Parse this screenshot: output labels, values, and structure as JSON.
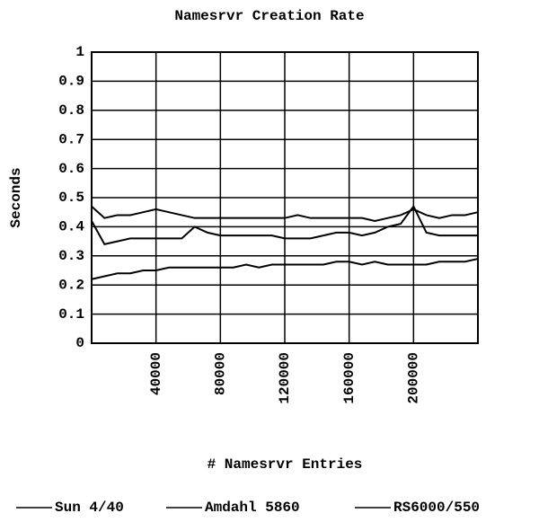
{
  "chart_data": {
    "type": "line",
    "title": "Namesrvr Creation Rate",
    "xlabel": "# Namesrvr Entries",
    "ylabel": "Seconds",
    "x": [
      0,
      8000,
      16000,
      24000,
      32000,
      40000,
      48000,
      56000,
      64000,
      72000,
      80000,
      88000,
      96000,
      104000,
      112000,
      120000,
      128000,
      136000,
      144000,
      152000,
      160000,
      168000,
      176000,
      184000,
      192000,
      200000,
      208000,
      216000,
      224000,
      232000,
      240000
    ],
    "series": [
      {
        "name": "Sun 4/40",
        "color": "#000000",
        "values": [
          0.47,
          0.43,
          0.44,
          0.44,
          0.45,
          0.46,
          0.45,
          0.44,
          0.43,
          0.43,
          0.43,
          0.43,
          0.43,
          0.43,
          0.43,
          0.43,
          0.44,
          0.43,
          0.43,
          0.43,
          0.43,
          0.43,
          0.42,
          0.43,
          0.44,
          0.46,
          0.44,
          0.43,
          0.44,
          0.44,
          0.45
        ]
      },
      {
        "name": "Amdahl 5860",
        "color": "#000000",
        "values": [
          0.42,
          0.34,
          0.35,
          0.36,
          0.36,
          0.36,
          0.36,
          0.36,
          0.4,
          0.38,
          0.37,
          0.37,
          0.37,
          0.37,
          0.37,
          0.36,
          0.36,
          0.36,
          0.37,
          0.38,
          0.38,
          0.37,
          0.38,
          0.4,
          0.41,
          0.47,
          0.38,
          0.37,
          0.37,
          0.37,
          0.37
        ]
      },
      {
        "name": "RS6000/550",
        "color": "#000000",
        "values": [
          0.22,
          0.23,
          0.24,
          0.24,
          0.25,
          0.25,
          0.26,
          0.26,
          0.26,
          0.26,
          0.26,
          0.26,
          0.27,
          0.26,
          0.27,
          0.27,
          0.27,
          0.27,
          0.27,
          0.28,
          0.28,
          0.27,
          0.28,
          0.27,
          0.27,
          0.27,
          0.27,
          0.28,
          0.28,
          0.28,
          0.29
        ]
      }
    ],
    "xlim": [
      0,
      240000
    ],
    "xticks": [
      40000,
      80000,
      120000,
      160000,
      200000
    ],
    "ylim": [
      0,
      1
    ],
    "yticks": [
      0,
      0.1,
      0.2,
      0.3,
      0.4,
      0.5,
      0.6,
      0.7,
      0.8,
      0.9,
      1
    ],
    "grid": true
  }
}
